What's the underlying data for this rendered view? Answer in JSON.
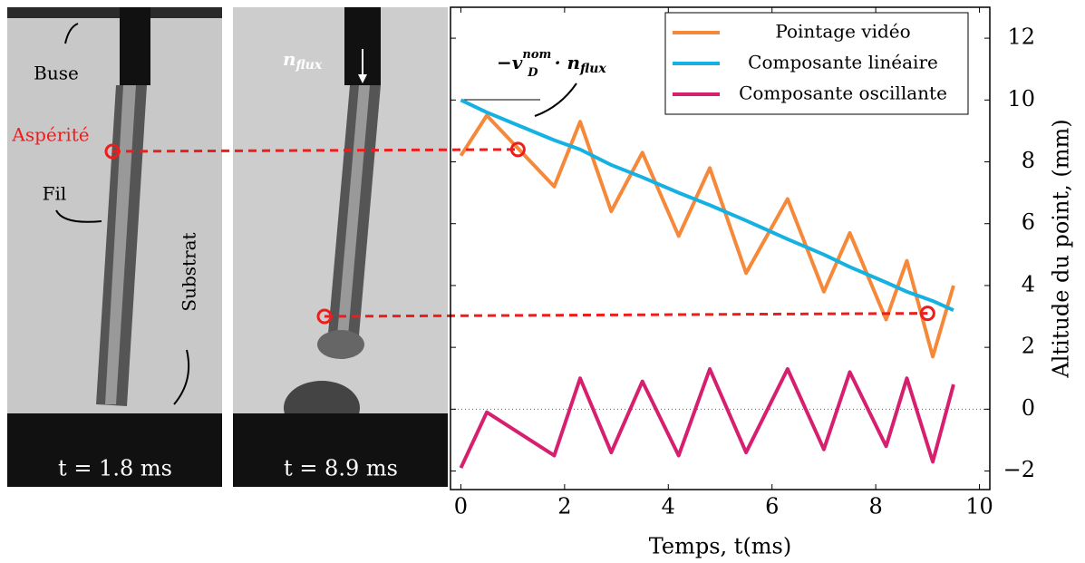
{
  "chart_data": {
    "type": "line",
    "xlabel": "Temps, t(ms)",
    "ylabel": "Altitude du point, (mm)",
    "x": [
      0,
      0.5,
      1.8,
      2.3,
      2.9,
      3.5,
      4.2,
      4.8,
      5.5,
      6.3,
      7.0,
      7.5,
      8.2,
      8.6,
      9.1,
      9.5
    ],
    "series": [
      {
        "name": "Pointage vidéo",
        "color": "#f6883a",
        "values": [
          8.2,
          9.5,
          7.2,
          9.3,
          6.4,
          8.3,
          5.6,
          7.8,
          4.4,
          6.8,
          3.8,
          5.7,
          2.9,
          4.8,
          1.7,
          4.0
        ]
      },
      {
        "name": "Composante linéaire",
        "color": "#16b1e3",
        "values": [
          10,
          9.6,
          8.7,
          8.4,
          7.9,
          7.5,
          7.0,
          6.6,
          6.1,
          5.5,
          5.0,
          4.6,
          4.1,
          3.8,
          3.5,
          3.2
        ]
      },
      {
        "name": "Composante oscillante",
        "color": "#d6206f",
        "values": [
          -1.9,
          -0.1,
          -1.5,
          1.0,
          -1.4,
          0.9,
          -1.5,
          1.3,
          -1.4,
          1.3,
          -1.3,
          1.2,
          -1.2,
          1.0,
          -1.7,
          0.8
        ]
      }
    ],
    "markers": {
      "color": "#ee1c1c",
      "x": [
        1.1,
        9.0
      ],
      "values": [
        8.4,
        3.1
      ]
    },
    "xlim": [
      -0.2,
      10.2
    ],
    "ylim": [
      -2.6,
      13
    ],
    "xticks": [
      0,
      2,
      4,
      6,
      8,
      10
    ],
    "yticks": [
      {
        "value": -2,
        "label": "−2"
      },
      0,
      2,
      4,
      6,
      8,
      10,
      12
    ],
    "legend": "top-right",
    "annotations": {
      "buse": "Buse",
      "asperite": "Aspérité",
      "fil": "Fil",
      "substrat": "Substrat",
      "nflux_n": "n",
      "nflux_sub": "flux",
      "t1": "t = 1.8 ms",
      "t2": "t = 8.9 ms",
      "vel": [
        "−v",
        "nom",
        "D",
        "· n",
        "flux"
      ]
    }
  }
}
